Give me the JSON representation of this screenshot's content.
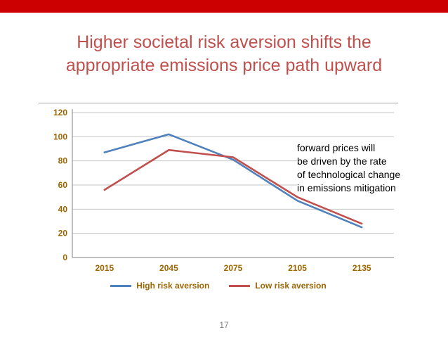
{
  "slide": {
    "title_lines": [
      "Higher societal risk aversion shifts the",
      "appropriate emissions price path upward"
    ],
    "accent_bar_color": "#CC0000",
    "title_color": "#C0504D"
  },
  "chart_data": {
    "type": "line",
    "categories": [
      "2015",
      "2045",
      "2075",
      "2105",
      "2135"
    ],
    "series": [
      {
        "name": "High risk aversion",
        "color": "#4F81BD",
        "values": [
          87,
          102,
          81,
          47,
          25
        ]
      },
      {
        "name": "Low risk aversion",
        "color": "#C0504D",
        "values": [
          56,
          89,
          83,
          50,
          28
        ]
      }
    ],
    "ylim": [
      0,
      120
    ],
    "ytick_step": 20,
    "grid": true,
    "legend_position": "bottom",
    "tick_label_color": "#9C6500",
    "gridline_color": "#C6C6C6",
    "axis_line_color": "#7F7F7F",
    "annotation": {
      "lines": [
        "forward prices will",
        "be driven by the rate",
        "of technological change",
        "in emissions mitigation"
      ]
    }
  },
  "footer": {
    "page_number": "17"
  }
}
